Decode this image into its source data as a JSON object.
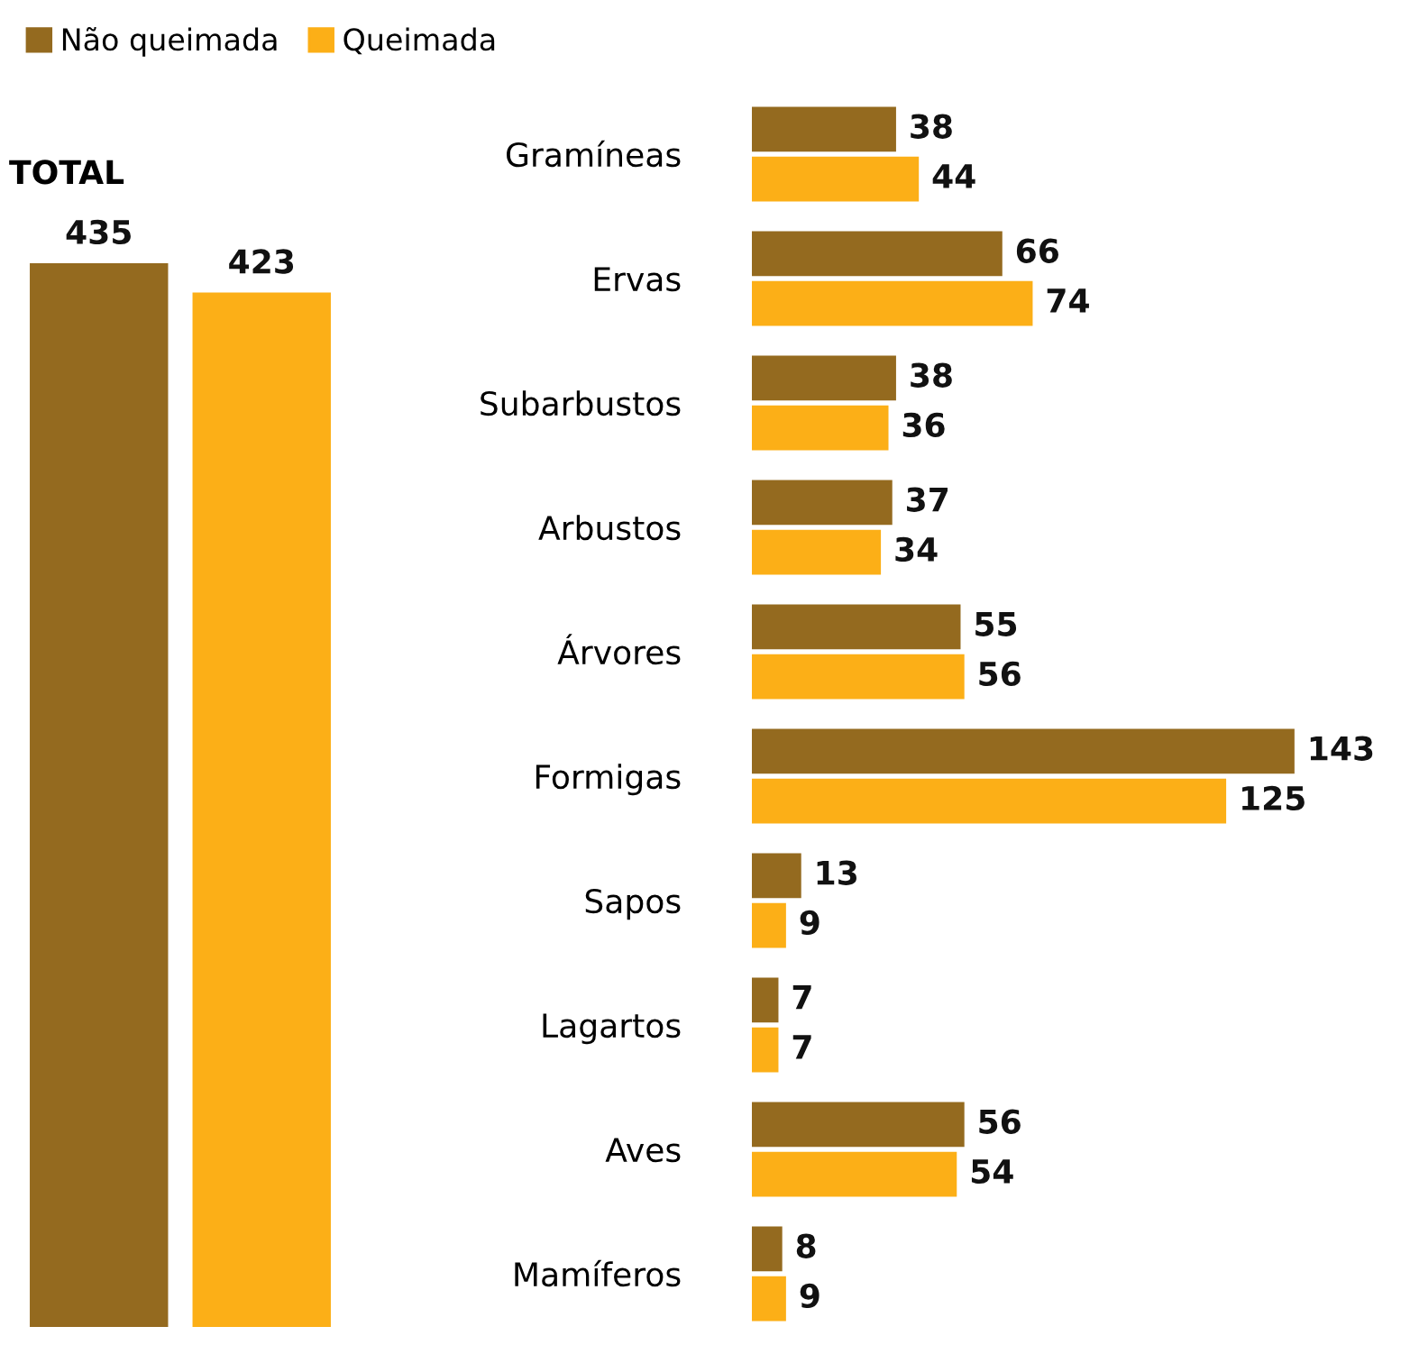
{
  "chart_data": [
    {
      "type": "bar",
      "title": "TOTAL",
      "categories": [
        null
      ],
      "data_labels": true,
      "legend": "top",
      "series": [
        {
          "name": "Não queimada",
          "color": "#946a1f",
          "values": [
            435
          ]
        },
        {
          "name": "Queimada",
          "color": "#fcaf17",
          "values": [
            423
          ]
        }
      ]
    },
    {
      "type": "bar",
      "orientation": "horizontal",
      "data_labels": true,
      "categories": [
        "Gramíneas",
        "Ervas",
        "Subarbustos",
        "Arbustos",
        "Árvores",
        "Formigas",
        "Sapos",
        "Lagartos",
        "Aves",
        "Mamíferos"
      ],
      "series": [
        {
          "name": "Não queimada",
          "color": "#946a1f",
          "values": [
            38,
            66,
            38,
            37,
            55,
            143,
            13,
            7,
            56,
            8
          ]
        },
        {
          "name": "Queimada",
          "color": "#fcaf17",
          "values": [
            44,
            74,
            36,
            34,
            56,
            125,
            9,
            7,
            54,
            9
          ]
        }
      ]
    }
  ]
}
